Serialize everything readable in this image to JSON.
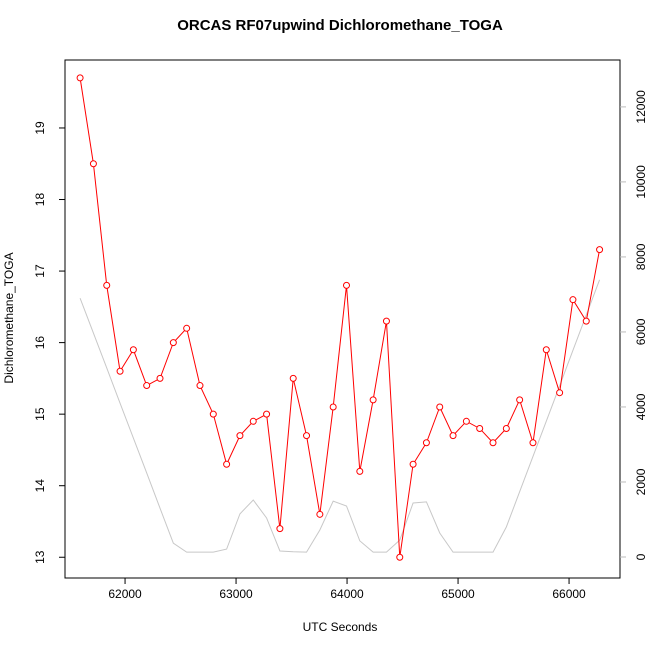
{
  "chart_data": {
    "type": "line",
    "title": "ORCAS RF07upwind Dichloromethane_TOGA",
    "xlabel": "UTC Seconds",
    "ylabel": "Dichloromethane_TOGA",
    "x": [
      61595,
      61715,
      61835,
      61955,
      62075,
      62195,
      62315,
      62435,
      62555,
      62675,
      62795,
      62915,
      63035,
      63155,
      63275,
      63395,
      63515,
      63635,
      63755,
      63875,
      63995,
      64115,
      64235,
      64355,
      64475,
      64595,
      64715,
      64835,
      64955,
      65075,
      65195,
      65315,
      65435,
      65555,
      65675,
      65795,
      65915,
      66035,
      66155,
      66275
    ],
    "series": [
      {
        "color": "#ff0000",
        "markers": true,
        "values": [
          19.7,
          18.5,
          16.8,
          15.6,
          15.9,
          15.4,
          15.5,
          16.0,
          16.2,
          15.4,
          15.0,
          14.3,
          14.7,
          14.9,
          15.0,
          13.4,
          15.5,
          14.7,
          13.6,
          15.1,
          16.8,
          14.2,
          15.2,
          16.3,
          13.0,
          14.3,
          14.6,
          15.1,
          14.7,
          14.9,
          14.8,
          14.6,
          14.8,
          15.2,
          14.6,
          15.9,
          15.3,
          16.6,
          16.3,
          17.3
        ]
      },
      {
        "color": "#c8c8c8",
        "axis": "y2",
        "markers": false,
        "values": [
          6900,
          5970,
          5040,
          4100,
          3170,
          2240,
          1300,
          370,
          130,
          130,
          130,
          210,
          1150,
          1520,
          1040,
          160,
          140,
          130,
          720,
          1490,
          1360,
          430,
          130,
          130,
          450,
          1440,
          1470,
          640,
          130,
          130,
          130,
          130,
          800,
          1740,
          2680,
          3620,
          4560,
          5510,
          6450,
          7390
        ]
      }
    ],
    "xlim": [
      61459,
      66459
    ],
    "xticks": [
      62000,
      63000,
      64000,
      65000,
      66000
    ],
    "ylim": [
      12.71,
      19.95
    ],
    "yticks": [
      13,
      14,
      15,
      16,
      17,
      18,
      19
    ],
    "y2lim": [
      -560,
      13250
    ],
    "y2ticks": [
      0,
      2000,
      4000,
      6000,
      8000,
      10000,
      12000
    ],
    "y2tick_color": "#bbbbbb"
  }
}
